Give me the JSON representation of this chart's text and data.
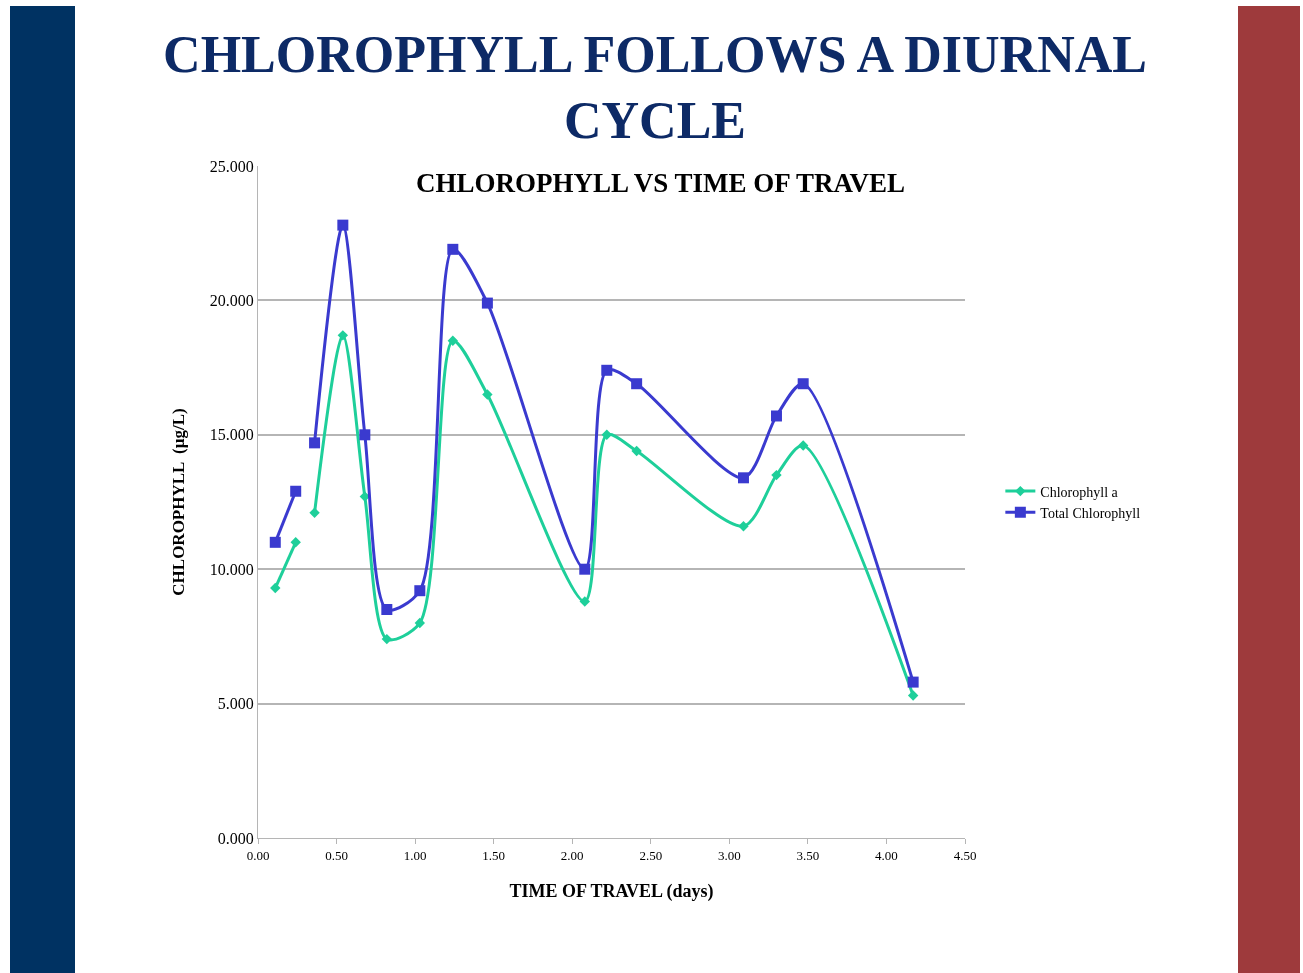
{
  "chart_data": {
    "type": "line",
    "title": "CHLOROPHYLL FOLLOWS A DIURNAL CYCLE",
    "subtitle": "CHLOROPHYLL VS TIME OF TRAVEL",
    "xlabel": "TIME OF TRAVEL (days)",
    "ylabel": "CHLOROPHYLL  (µg/L)",
    "xlim": [
      0,
      4.5
    ],
    "xticks": [
      {
        "value": 0,
        "label": "0.00"
      },
      {
        "value": 0.5,
        "label": "0.50"
      },
      {
        "value": 1,
        "label": "1.00"
      },
      {
        "value": 1.5,
        "label": "1.50"
      },
      {
        "value": 2,
        "label": "2.00"
      },
      {
        "value": 2.5,
        "label": "2.50"
      },
      {
        "value": 3,
        "label": "3.00"
      },
      {
        "value": 3.5,
        "label": "3.50"
      },
      {
        "value": 4,
        "label": "4.00"
      },
      {
        "value": 4.5,
        "label": "4.50"
      }
    ],
    "ylim": [
      0,
      25
    ],
    "yticks": [
      {
        "value": 0,
        "label": "0.000"
      },
      {
        "value": 5,
        "label": "5.000"
      },
      {
        "value": 10,
        "label": "10.000"
      },
      {
        "value": 15,
        "label": "15.000"
      },
      {
        "value": 20,
        "label": "20.000"
      },
      {
        "value": 25,
        "label": "25.000"
      }
    ],
    "grid": "y",
    "legend": "right",
    "line_style": "solid",
    "series": [
      {
        "name": "Chlorophyll a",
        "color": "#1ecf9a",
        "marker": "diamond",
        "x": [
          0.11,
          0.24,
          0.3,
          0.36,
          0.54,
          0.68,
          0.82,
          1.03,
          1.24,
          1.46,
          2.08,
          2.22,
          2.41,
          3.09,
          3.3,
          3.47,
          4.17
        ],
        "values": [
          9.3,
          11.0,
          null,
          12.1,
          18.7,
          12.7,
          7.4,
          8.0,
          18.5,
          16.5,
          8.8,
          15.0,
          14.4,
          11.6,
          13.5,
          14.6,
          5.3
        ]
      },
      {
        "name": "Total Chlorophyll",
        "color": "#3a3acf",
        "marker": "square",
        "x": [
          0.11,
          0.24,
          0.3,
          0.36,
          0.54,
          0.68,
          0.82,
          1.03,
          1.24,
          1.46,
          2.08,
          2.22,
          2.41,
          3.09,
          3.3,
          3.47,
          4.17
        ],
        "values": [
          11.0,
          12.9,
          null,
          14.7,
          22.8,
          15.0,
          8.5,
          9.2,
          21.9,
          19.9,
          10.0,
          17.4,
          16.9,
          13.4,
          15.7,
          16.9,
          5.8
        ]
      }
    ]
  }
}
